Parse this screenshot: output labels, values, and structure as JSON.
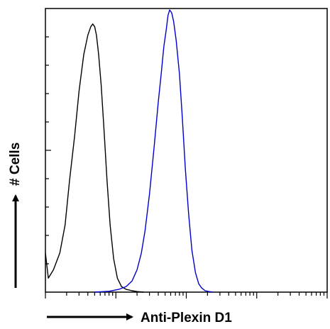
{
  "chart_data": {
    "type": "line",
    "title": "",
    "xlabel": "Anti-Plexin D1",
    "ylabel": "# Cells",
    "x_scale": "log",
    "xlim": [
      1,
      10000
    ],
    "ylim": [
      0,
      100
    ],
    "grid": false,
    "legend": "none",
    "series": [
      {
        "color": "#000000",
        "x": [
          1.0,
          1.1,
          1.3,
          1.6,
          1.9,
          2.2,
          2.6,
          3.0,
          3.5,
          4.0,
          4.4,
          4.7,
          5.0,
          5.3,
          5.7,
          6.2,
          6.8,
          7.5,
          8.3,
          9.3,
          10.5,
          12,
          14,
          17,
          20,
          25
        ],
        "y": [
          14,
          5,
          8,
          14,
          24,
          40,
          56,
          72,
          85,
          92,
          95,
          96,
          95,
          92,
          85,
          74,
          58,
          40,
          24,
          12,
          5,
          2,
          1,
          0.5,
          0.2,
          0
        ]
      },
      {
        "color": "#0000cc",
        "x": [
          5,
          8,
          11,
          14,
          17,
          20,
          23,
          26,
          30,
          35,
          40,
          44,
          48,
          52,
          55,
          58,
          62,
          66,
          72,
          80,
          88,
          97,
          108,
          120,
          135,
          150,
          165,
          185,
          210,
          240
        ],
        "y": [
          0,
          0.3,
          1,
          2,
          4,
          8,
          14,
          22,
          35,
          52,
          68,
          78,
          88,
          94,
          99,
          101,
          100,
          97,
          90,
          78,
          62,
          44,
          28,
          15,
          7,
          3,
          1.5,
          0.5,
          0.2,
          0
        ]
      }
    ]
  }
}
